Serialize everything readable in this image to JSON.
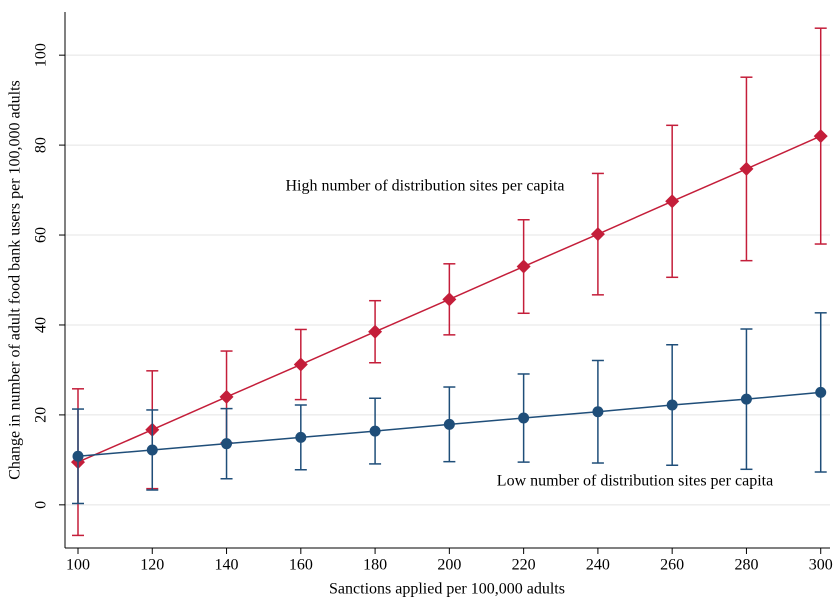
{
  "chart_data": {
    "type": "line",
    "x_label": "Sanctions applied per 100,000 adults",
    "y_label": "Change in number of adult food bank users per 100,000 adults",
    "x": [
      100,
      120,
      140,
      160,
      180,
      200,
      220,
      240,
      260,
      280,
      300
    ],
    "series": [
      {
        "name": "High number of distribution sites per capita",
        "color": "#c41e3a",
        "marker": "diamond",
        "values": [
          9.5,
          16.7,
          24.0,
          31.2,
          38.5,
          45.7,
          53.0,
          60.2,
          67.5,
          74.7,
          82.0
        ],
        "errors": [
          16.3,
          13.1,
          10.2,
          7.8,
          6.9,
          7.9,
          10.4,
          13.5,
          16.9,
          20.4,
          24.0
        ]
      },
      {
        "name": "Low number of distribution sites per capita",
        "color": "#1f4e79",
        "marker": "circle",
        "values": [
          10.8,
          12.2,
          13.6,
          15.0,
          16.4,
          17.9,
          19.3,
          20.7,
          22.2,
          23.5,
          25.0
        ],
        "errors": [
          10.5,
          8.9,
          7.8,
          7.2,
          7.3,
          8.3,
          9.8,
          11.4,
          13.4,
          15.6,
          17.7
        ]
      }
    ],
    "xlim": [
      96.5,
      302.5
    ],
    "xticks": [
      100,
      120,
      140,
      160,
      180,
      200,
      220,
      240,
      260,
      280,
      300
    ],
    "ylim": [
      -9.6,
      109.6
    ],
    "yticks": [
      0,
      20,
      40,
      60,
      80,
      100
    ],
    "grid": true
  }
}
